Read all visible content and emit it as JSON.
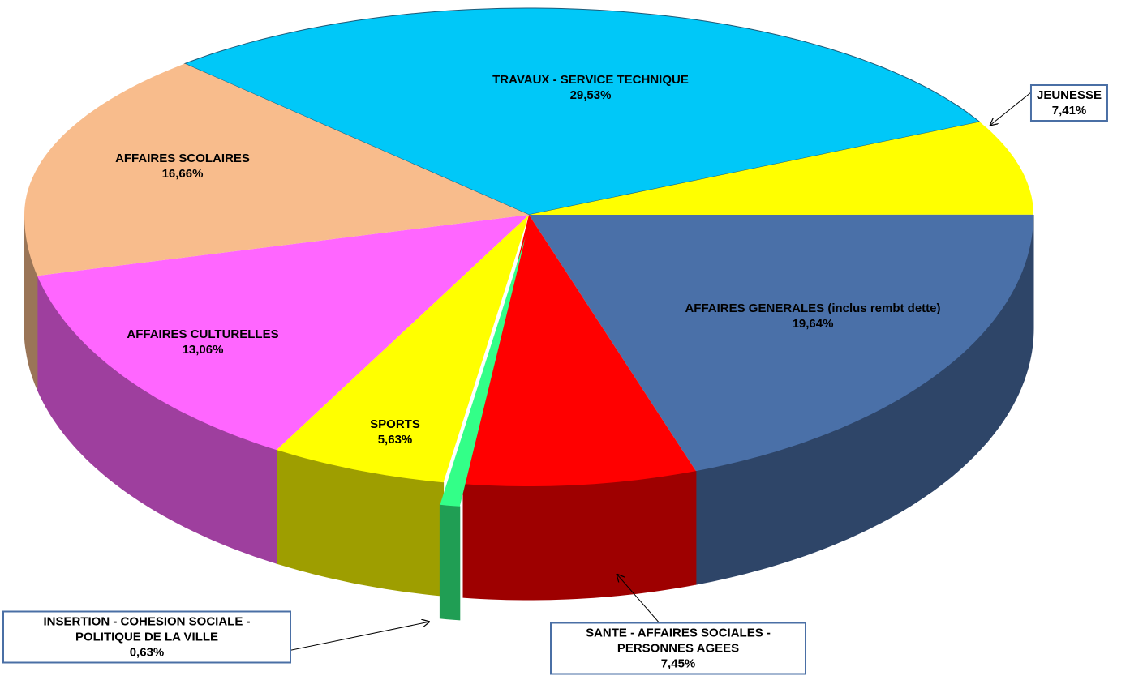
{
  "chart_data": {
    "type": "pie3d",
    "categories": [
      "TRAVAUX - SERVICE TECHNIQUE",
      "JEUNESSE",
      "AFFAIRES GENERALES (inclus rembt dette)",
      "SANTE - AFFAIRES SOCIALES - PERSONNES AGEES",
      "INSERTION - COHESION SOCIALE - POLITIQUE DE LA VILLE",
      "SPORTS",
      "AFFAIRES CULTURELLES",
      "AFFAIRES SCOLAIRES"
    ],
    "values": [
      29.53,
      7.41,
      19.64,
      7.45,
      0.63,
      5.63,
      13.06,
      16.66
    ],
    "value_labels": [
      "29,53%",
      "7,41%",
      "19,64%",
      "7,45%",
      "0,63%",
      "5,63%",
      "13,06%",
      "16,66%"
    ],
    "colors": [
      "#00c8f8",
      "#ffff00",
      "#4a70a8",
      "#ff0000",
      "#33ff88",
      "#ffff00",
      "#ff66ff",
      "#f8bc8c"
    ]
  }
}
